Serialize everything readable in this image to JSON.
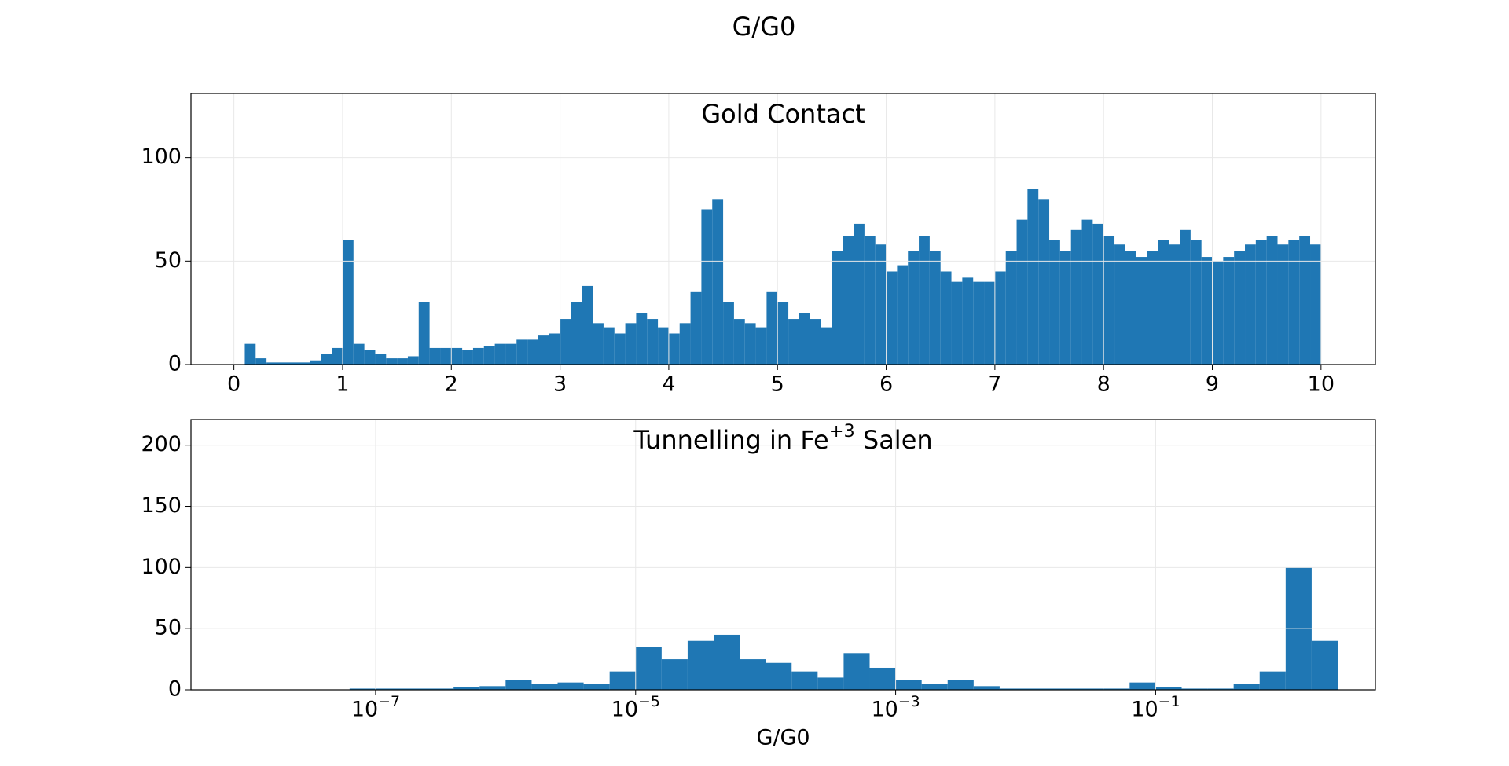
{
  "title": "G/G0",
  "chart_data": [
    {
      "type": "histogram",
      "title": "Gold Contact",
      "color": "#1f77b4",
      "grid": true,
      "xscale": "linear",
      "bins": [
        0,
        0.1,
        0.2,
        0.3,
        0.4,
        0.5,
        0.6,
        0.7,
        0.8,
        0.9,
        1,
        1.1,
        1.2,
        1.3,
        1.4,
        1.5,
        1.6,
        1.7,
        1.8,
        1.9,
        2,
        2.1,
        2.2,
        2.3,
        2.4,
        2.5,
        2.6,
        2.7,
        2.8,
        2.9,
        3,
        3.1,
        3.2,
        3.3,
        3.4,
        3.5,
        3.6,
        3.7,
        3.8,
        3.9,
        4,
        4.1,
        4.2,
        4.3,
        4.4,
        4.5,
        4.6,
        4.7,
        4.8,
        4.9,
        5,
        5.1,
        5.2,
        5.3,
        5.4,
        5.5,
        5.6,
        5.7,
        5.8,
        5.9,
        6,
        6.1,
        6.2,
        6.3,
        6.4,
        6.5,
        6.6,
        6.7,
        6.8,
        6.9,
        7,
        7.1,
        7.2,
        7.3,
        7.4,
        7.5,
        7.6,
        7.7,
        7.8,
        7.9,
        8,
        8.1,
        8.2,
        8.3,
        8.4,
        8.5,
        8.6,
        8.7,
        8.8,
        8.9,
        9,
        9.1,
        9.2,
        9.3,
        9.4,
        9.5,
        9.6,
        9.7,
        9.8,
        9.9,
        10
      ],
      "values": [
        0,
        10,
        3,
        1,
        1,
        1,
        1,
        2,
        5,
        8,
        60,
        10,
        7,
        5,
        3,
        3,
        4,
        30,
        8,
        8,
        8,
        7,
        8,
        9,
        10,
        10,
        12,
        12,
        14,
        15,
        22,
        30,
        38,
        20,
        18,
        15,
        20,
        25,
        22,
        18,
        15,
        20,
        35,
        75,
        80,
        30,
        22,
        20,
        18,
        35,
        30,
        22,
        25,
        22,
        18,
        55,
        62,
        68,
        62,
        58,
        45,
        48,
        55,
        62,
        55,
        45,
        40,
        42,
        40,
        40,
        45,
        55,
        70,
        85,
        80,
        60,
        55,
        65,
        70,
        68,
        62,
        58,
        55,
        52,
        55,
        60,
        58,
        65,
        60,
        52,
        50,
        52,
        55,
        58,
        60,
        62,
        58,
        60,
        62,
        58
      ],
      "xlim": [
        -0.395,
        10.5
      ],
      "xticks": [
        0,
        1,
        2,
        3,
        4,
        5,
        6,
        7,
        8,
        9,
        10
      ],
      "ylim": [
        0,
        131
      ],
      "yticks": [
        0,
        50,
        100
      ]
    },
    {
      "type": "histogram",
      "title": "Tunnelling in Fe+3  Salen",
      "xlabel": "G/G0",
      "color": "#1f77b4",
      "grid": true,
      "xscale": "log",
      "bins": [
        1e-08,
        1.585e-08,
        2.512e-08,
        3.981e-08,
        6.31e-08,
        1e-07,
        1.585e-07,
        2.512e-07,
        3.981e-07,
        6.31e-07,
        1e-06,
        1.585e-06,
        2.512e-06,
        3.981e-06,
        6.31e-06,
        1e-05,
        1.585e-05,
        2.512e-05,
        3.981e-05,
        6.31e-05,
        0.0001,
        0.0001585,
        0.0002512,
        0.0003981,
        0.000631,
        0.001,
        0.001585,
        0.002512,
        0.003981,
        0.00631,
        0.01,
        0.01585,
        0.02512,
        0.03981,
        0.0631,
        0.1,
        0.1585,
        0.2512,
        0.3981,
        0.631,
        1,
        1.585,
        2.512
      ],
      "values": [
        0,
        0,
        0,
        0,
        1,
        1,
        1,
        1,
        2,
        3,
        8,
        5,
        6,
        5,
        15,
        35,
        25,
        40,
        45,
        25,
        22,
        15,
        10,
        30,
        18,
        8,
        5,
        8,
        3,
        1,
        1,
        1,
        1,
        1,
        6,
        2,
        1,
        1,
        5,
        15,
        100,
        40
      ],
      "xlim": [
        3.8e-09,
        4.9
      ],
      "xticks": [
        {
          "value": 1e-07,
          "label": "10−7"
        },
        {
          "value": 1e-05,
          "label": "10−5"
        },
        {
          "value": 0.001,
          "label": "10−3"
        },
        {
          "value": 0.1,
          "label": "10−1"
        }
      ],
      "ylim": [
        0,
        221
      ],
      "yticks": [
        0,
        50,
        100,
        150,
        200
      ]
    }
  ]
}
